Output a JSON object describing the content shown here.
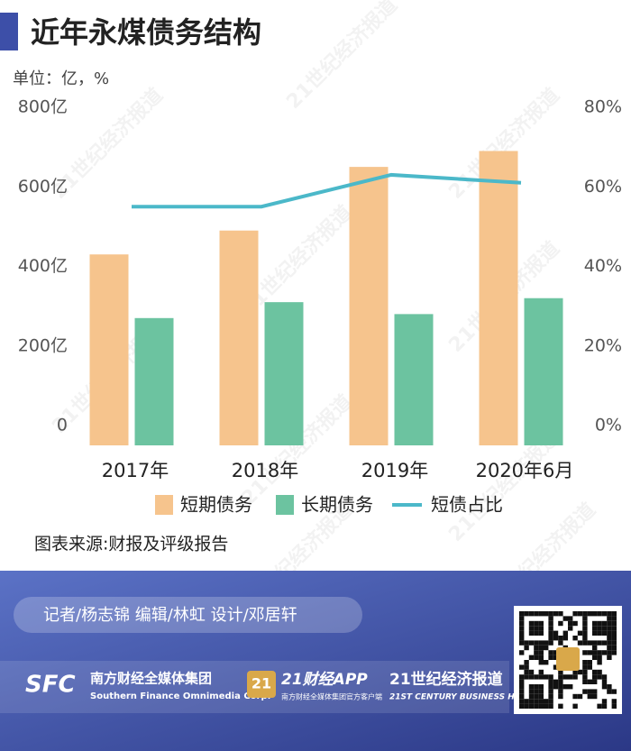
{
  "chart_data": {
    "type": "bar",
    "title": "近年永煤债务结构",
    "unit_label": "单位：亿，%",
    "categories": [
      "2017年",
      "2018年",
      "2019年",
      "2020年6月"
    ],
    "series": [
      {
        "name": "短期债务",
        "type": "bar",
        "color": "#f6c48d",
        "values": [
          480,
          540,
          700,
          740
        ]
      },
      {
        "name": "长期债务",
        "type": "bar",
        "color": "#6cc3a0",
        "values": [
          320,
          360,
          330,
          370
        ]
      },
      {
        "name": "短债占比",
        "type": "line",
        "axis": "y2",
        "color": "#4bb8c9",
        "values": [
          60,
          60,
          68,
          66
        ]
      }
    ],
    "ylim": [
      0,
      800
    ],
    "yticks": [
      0,
      {
        "value": 200,
        "label": "200亿"
      },
      {
        "value": 400,
        "label": "400亿"
      },
      {
        "value": 600,
        "label": "600亿"
      },
      {
        "value": 800,
        "label": "800亿"
      }
    ],
    "y2lim": [
      0,
      80
    ],
    "y2ticks": [
      {
        "value": 0,
        "label": "0%"
      },
      {
        "value": 20,
        "label": "20%"
      },
      {
        "value": 40,
        "label": "40%"
      },
      {
        "value": 60,
        "label": "60%"
      },
      {
        "value": 80,
        "label": "80%"
      }
    ],
    "grid": false,
    "legend": "bottom",
    "source": "图表来源:财报及评级报告"
  },
  "footer": {
    "credits": "记者/杨志锦  编辑/林虹  设计/邓居轩",
    "brands": [
      "SFC",
      "南方财经全媒体集团",
      "Southern Finance Omnimedia Corp.",
      "21",
      "21财经APP",
      "南方财经全媒体集团官方客户端",
      "21世纪经济报道",
      "21ST CENTURY BUSINESS HERALD"
    ]
  },
  "watermark": "21世纪经济报道"
}
